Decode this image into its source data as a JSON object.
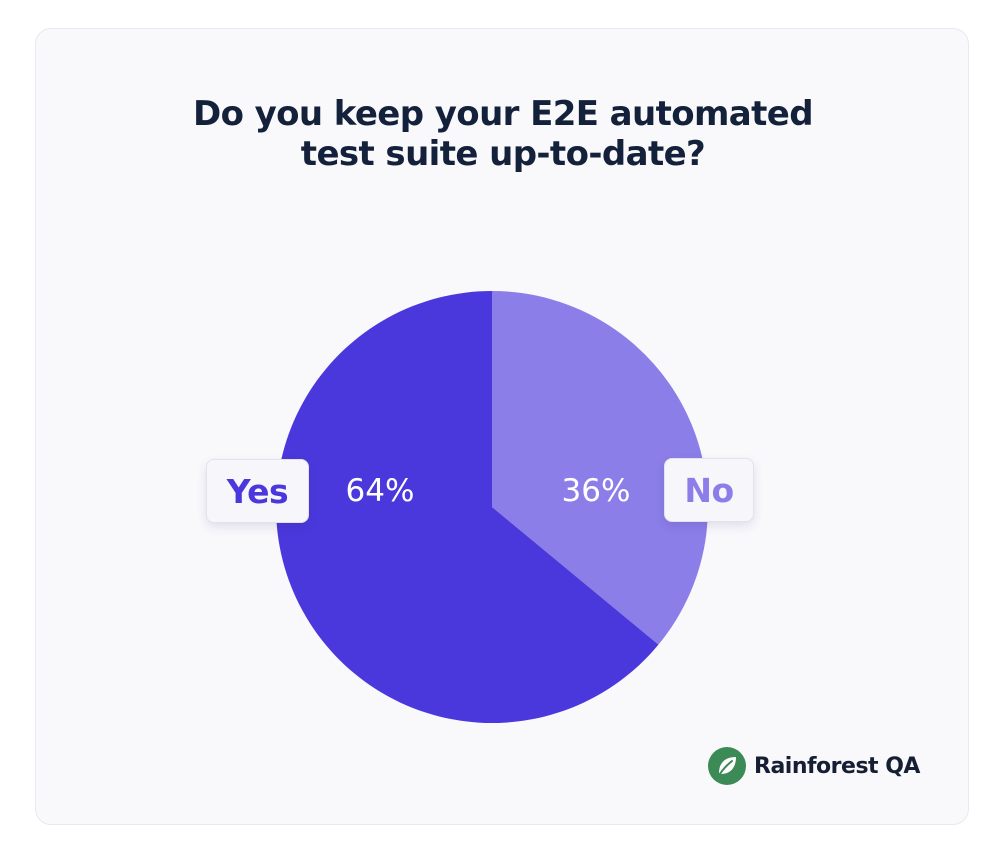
{
  "chart_data": {
    "type": "pie",
    "title_lines": [
      "Do you keep your E2E automated",
      "test suite up-to-date?"
    ],
    "slices": [
      {
        "label": "No",
        "value": 36,
        "value_label": "36%",
        "color": "#8b7ee8"
      },
      {
        "label": "Yes",
        "value": 64,
        "value_label": "64%",
        "color": "#4b38dc"
      }
    ],
    "start_angle": "12 o'clock, clockwise",
    "legend": "labels beside slices"
  },
  "colors": {
    "card_background": "#f9f9fc",
    "title": "#14213a",
    "slice_label_text": "#ffffff",
    "brand_green": "#3c8a56"
  },
  "brand": {
    "name": "Rainforest QA",
    "icon": "leaf-icon"
  }
}
